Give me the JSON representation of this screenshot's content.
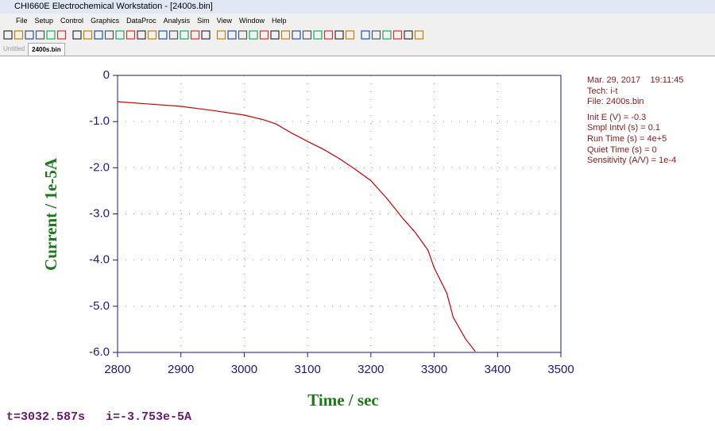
{
  "window": {
    "title": "CHI660E Electrochemical Workstation - [2400s.bin]"
  },
  "menu": [
    "File",
    "Setup",
    "Control",
    "Graphics",
    "DataProc",
    "Analysis",
    "Sim",
    "View",
    "Window",
    "Help"
  ],
  "tabs": [
    "Untitled",
    "2400s.bin"
  ],
  "chart_data": {
    "type": "line",
    "x_label": "Time / sec",
    "y_label": "Current / 1e-5A",
    "x": [
      2800,
      2850,
      2900,
      2950,
      3000,
      3030,
      3050,
      3075,
      3100,
      3125,
      3150,
      3175,
      3200,
      3225,
      3250,
      3270,
      3290,
      3300,
      3320,
      3330,
      3350,
      3365
    ],
    "series": [
      {
        "color": "#cc0000",
        "values": [
          -0.57,
          -0.62,
          -0.67,
          -0.76,
          -0.86,
          -0.96,
          -1.05,
          -1.25,
          -1.43,
          -1.6,
          -1.8,
          -2.03,
          -2.28,
          -2.66,
          -3.09,
          -3.4,
          -3.78,
          -4.17,
          -4.72,
          -5.24,
          -5.72,
          -5.98
        ]
      }
    ],
    "xlim": [
      2800,
      3500
    ],
    "xticks": [
      2800,
      2900,
      3000,
      3100,
      3200,
      3300,
      3400,
      3500
    ],
    "ylim": [
      -6,
      0
    ],
    "yticks": [
      0,
      {
        "value": -1,
        "label": "-1.0"
      },
      {
        "value": -2,
        "label": "-2.0"
      },
      {
        "value": -3,
        "label": "-3.0"
      },
      {
        "value": -4,
        "label": "-4.0"
      },
      {
        "value": -5,
        "label": "-5.0"
      },
      {
        "value": -6,
        "label": "-6.0"
      }
    ],
    "grid": true
  },
  "info": [
    "Mar. 29, 2017    19:11:45",
    "Tech: i-t",
    "File: 2400s.bin",
    "Init E (V) = -0.3",
    "Smpl Intvl (s) = 0.1",
    "Run Time (s) = 4e+5",
    "Quiet Time (s) = 0",
    "Sensitivity (A/V) = 1e-4"
  ],
  "status": [
    "t=3032.587s",
    "i=-3.753e-5A"
  ]
}
